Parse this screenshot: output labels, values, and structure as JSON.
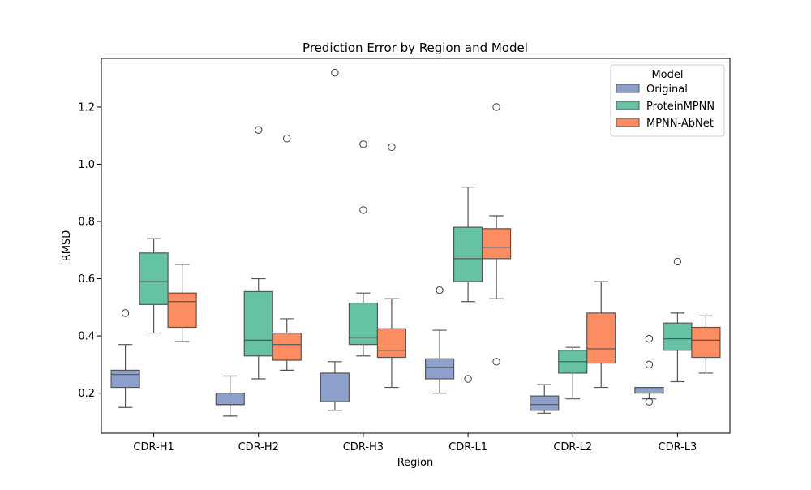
{
  "chart_data": {
    "type": "box",
    "title": "Prediction Error by Region and Model",
    "xlabel": "Region",
    "ylabel": "RMSD",
    "ylim": [
      0.06,
      1.37
    ],
    "yticks": [
      "0.2",
      "0.4",
      "0.6",
      "0.8",
      "1.0",
      "1.2"
    ],
    "categories": [
      "CDR-H1",
      "CDR-H2",
      "CDR-H3",
      "CDR-L1",
      "CDR-L2",
      "CDR-L3"
    ],
    "legend": {
      "title": "Model",
      "position": "upper right"
    },
    "grid": false,
    "series": [
      {
        "name": "Original",
        "color": "#8DA0CB",
        "boxes": [
          {
            "min": 0.15,
            "q1": 0.22,
            "median": 0.265,
            "q3": 0.28,
            "max": 0.37,
            "outliers": [
              0.48
            ]
          },
          {
            "min": 0.12,
            "q1": 0.16,
            "median": 0.16,
            "q3": 0.2,
            "max": 0.26,
            "outliers": []
          },
          {
            "min": 0.14,
            "q1": 0.17,
            "median": 0.17,
            "q3": 0.27,
            "max": 0.31,
            "outliers": [
              1.32
            ]
          },
          {
            "min": 0.2,
            "q1": 0.25,
            "median": 0.29,
            "q3": 0.32,
            "max": 0.42,
            "outliers": [
              0.56
            ]
          },
          {
            "min": 0.13,
            "q1": 0.14,
            "median": 0.16,
            "q3": 0.19,
            "max": 0.23,
            "outliers": []
          },
          {
            "min": 0.18,
            "q1": 0.2,
            "median": 0.22,
            "q3": 0.22,
            "max": 0.22,
            "outliers": [
              0.39,
              0.3,
              0.17
            ]
          }
        ]
      },
      {
        "name": "ProteinMPNN",
        "color": "#66C2A5",
        "boxes": [
          {
            "min": 0.41,
            "q1": 0.51,
            "median": 0.59,
            "q3": 0.69,
            "max": 0.74,
            "outliers": []
          },
          {
            "min": 0.25,
            "q1": 0.33,
            "median": 0.385,
            "q3": 0.555,
            "max": 0.6,
            "outliers": [
              1.12
            ]
          },
          {
            "min": 0.33,
            "q1": 0.37,
            "median": 0.395,
            "q3": 0.515,
            "max": 0.55,
            "outliers": [
              1.07,
              0.84
            ]
          },
          {
            "min": 0.52,
            "q1": 0.59,
            "median": 0.67,
            "q3": 0.78,
            "max": 0.92,
            "outliers": [
              0.25
            ]
          },
          {
            "min": 0.18,
            "q1": 0.27,
            "median": 0.31,
            "q3": 0.35,
            "max": 0.36,
            "outliers": []
          },
          {
            "min": 0.24,
            "q1": 0.35,
            "median": 0.39,
            "q3": 0.445,
            "max": 0.48,
            "outliers": [
              0.66
            ]
          }
        ]
      },
      {
        "name": "MPNN-AbNet",
        "color": "#FC8D62",
        "boxes": [
          {
            "min": 0.38,
            "q1": 0.43,
            "median": 0.52,
            "q3": 0.55,
            "max": 0.65,
            "outliers": []
          },
          {
            "min": 0.28,
            "q1": 0.315,
            "median": 0.37,
            "q3": 0.41,
            "max": 0.46,
            "outliers": [
              1.09
            ]
          },
          {
            "min": 0.22,
            "q1": 0.325,
            "median": 0.35,
            "q3": 0.425,
            "max": 0.53,
            "outliers": [
              1.06
            ]
          },
          {
            "min": 0.53,
            "q1": 0.67,
            "median": 0.71,
            "q3": 0.775,
            "max": 0.82,
            "outliers": [
              1.2,
              0.31
            ]
          },
          {
            "min": 0.22,
            "q1": 0.305,
            "median": 0.355,
            "q3": 0.48,
            "max": 0.59,
            "outliers": []
          },
          {
            "min": 0.27,
            "q1": 0.325,
            "median": 0.385,
            "q3": 0.43,
            "max": 0.47,
            "outliers": []
          }
        ]
      }
    ]
  }
}
